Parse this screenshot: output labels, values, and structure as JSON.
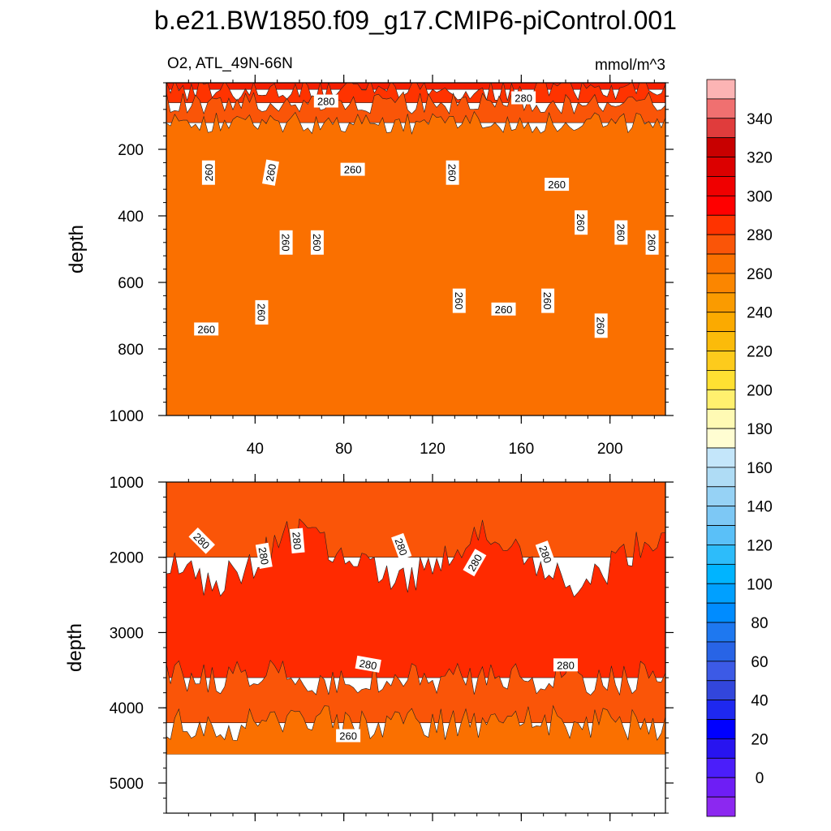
{
  "chart_data": [
    {
      "type": "heatmap",
      "panel": "upper",
      "title": "b.e21.BW1850.f09_g17.CMIP6-piControl.001",
      "subtitle_left": "O2, ATL_49N-66N",
      "subtitle_right": "mmol/m^3",
      "xlabel": "",
      "ylabel": "depth",
      "xlim": [
        0,
        225
      ],
      "ylim": [
        1000,
        0
      ],
      "x_ticks": [
        40,
        80,
        120,
        160,
        200
      ],
      "y_ticks": [
        200,
        400,
        600,
        800,
        1000
      ],
      "bands": [
        {
          "from_depth": 0,
          "to_depth": 20,
          "value": 295,
          "color": "#f51e00"
        },
        {
          "from_depth": 20,
          "to_depth": 60,
          "value": 285,
          "color": "#ff3300"
        },
        {
          "from_depth": 60,
          "to_depth": 120,
          "value": 275,
          "color": "#fa5508"
        },
        {
          "from_depth": 120,
          "to_depth": 1000,
          "value": 262,
          "color": "#fa7000"
        }
      ],
      "contour_labels": [
        {
          "x": 72,
          "depth": 55,
          "text": "280",
          "angle": 0
        },
        {
          "x": 161,
          "depth": 45,
          "text": "280",
          "angle": 0
        },
        {
          "x": 19,
          "depth": 270,
          "text": "260",
          "angle": -90
        },
        {
          "x": 47,
          "depth": 270,
          "text": "260",
          "angle": -80
        },
        {
          "x": 84,
          "depth": 260,
          "text": "260",
          "angle": 0
        },
        {
          "x": 129,
          "depth": 270,
          "text": "260",
          "angle": 90
        },
        {
          "x": 176,
          "depth": 305,
          "text": "260",
          "angle": 0
        },
        {
          "x": 54,
          "depth": 480,
          "text": "260",
          "angle": 90
        },
        {
          "x": 68,
          "depth": 480,
          "text": "260",
          "angle": 90
        },
        {
          "x": 187,
          "depth": 420,
          "text": "260",
          "angle": 90
        },
        {
          "x": 205,
          "depth": 450,
          "text": "260",
          "angle": 90
        },
        {
          "x": 219,
          "depth": 480,
          "text": "260",
          "angle": 90
        },
        {
          "x": 132,
          "depth": 655,
          "text": "260",
          "angle": 90
        },
        {
          "x": 43,
          "depth": 690,
          "text": "260",
          "angle": 90
        },
        {
          "x": 152,
          "depth": 680,
          "text": "260",
          "angle": 0
        },
        {
          "x": 172,
          "depth": 655,
          "text": "260",
          "angle": 90
        },
        {
          "x": 196,
          "depth": 730,
          "text": "260",
          "angle": 90
        },
        {
          "x": 18,
          "depth": 740,
          "text": "260",
          "angle": 0
        }
      ]
    },
    {
      "type": "heatmap",
      "panel": "lower",
      "xlabel": "",
      "ylabel": "depth",
      "xlim": [
        0,
        225
      ],
      "ylim": [
        5400,
        1000
      ],
      "x_ticks": [
        40,
        80,
        120,
        160,
        200
      ],
      "y_ticks": [
        1000,
        2000,
        3000,
        4000,
        5000
      ],
      "missing_below_depth": 4620,
      "bands": [
        {
          "from_depth": 1000,
          "to_depth": 2000,
          "value": 270,
          "color": "#fa5508"
        },
        {
          "from_depth": 2000,
          "to_depth": 3600,
          "value": 285,
          "color": "#ff2a00"
        },
        {
          "from_depth": 3600,
          "to_depth": 4200,
          "value": 275,
          "color": "#fa5508"
        },
        {
          "from_depth": 4200,
          "to_depth": 4620,
          "value": 262,
          "color": "#fa7000"
        }
      ],
      "contour_labels": [
        {
          "x": 16,
          "depth": 1780,
          "text": "280",
          "angle": 45
        },
        {
          "x": 44,
          "depth": 1980,
          "text": "280",
          "angle": 80
        },
        {
          "x": 59,
          "depth": 1780,
          "text": "280",
          "angle": 85
        },
        {
          "x": 106,
          "depth": 1860,
          "text": "280",
          "angle": 70
        },
        {
          "x": 139,
          "depth": 2070,
          "text": "280",
          "angle": -60
        },
        {
          "x": 171,
          "depth": 1960,
          "text": "280",
          "angle": 70
        },
        {
          "x": 91,
          "depth": 3420,
          "text": "280",
          "angle": 10
        },
        {
          "x": 180,
          "depth": 3430,
          "text": "280",
          "angle": 0
        },
        {
          "x": 82,
          "depth": 4370,
          "text": "260",
          "angle": 0
        }
      ]
    }
  ],
  "colorbar": {
    "labels": [
      "340",
      "320",
      "300",
      "280",
      "260",
      "240",
      "220",
      "200",
      "180",
      "160",
      "140",
      "120",
      "100",
      "80",
      "60",
      "40",
      "20",
      "0"
    ],
    "colors": [
      "#fcb4b4",
      "#f07070",
      "#e03c3c",
      "#c80000",
      "#dc0000",
      "#f00000",
      "#ff0000",
      "#ff3300",
      "#fa5508",
      "#fa7000",
      "#fb8600",
      "#fa9b00",
      "#fbaa00",
      "#fbbb0a",
      "#fdcb1c",
      "#ffe032",
      "#fff06e",
      "#fffab4",
      "#fffdd2",
      "#c4e6fa",
      "#afdcf5",
      "#96d2f5",
      "#7dc8f5",
      "#5ac0f8",
      "#2dbcfa",
      "#00b4ff",
      "#00a0ff",
      "#008cff",
      "#1e78f0",
      "#2864e6",
      "#3c5ae6",
      "#3246dc",
      "#1e28f0",
      "#0000ff",
      "#2814f0",
      "#4b1efa",
      "#6e1ef5",
      "#8c28f0"
    ]
  }
}
